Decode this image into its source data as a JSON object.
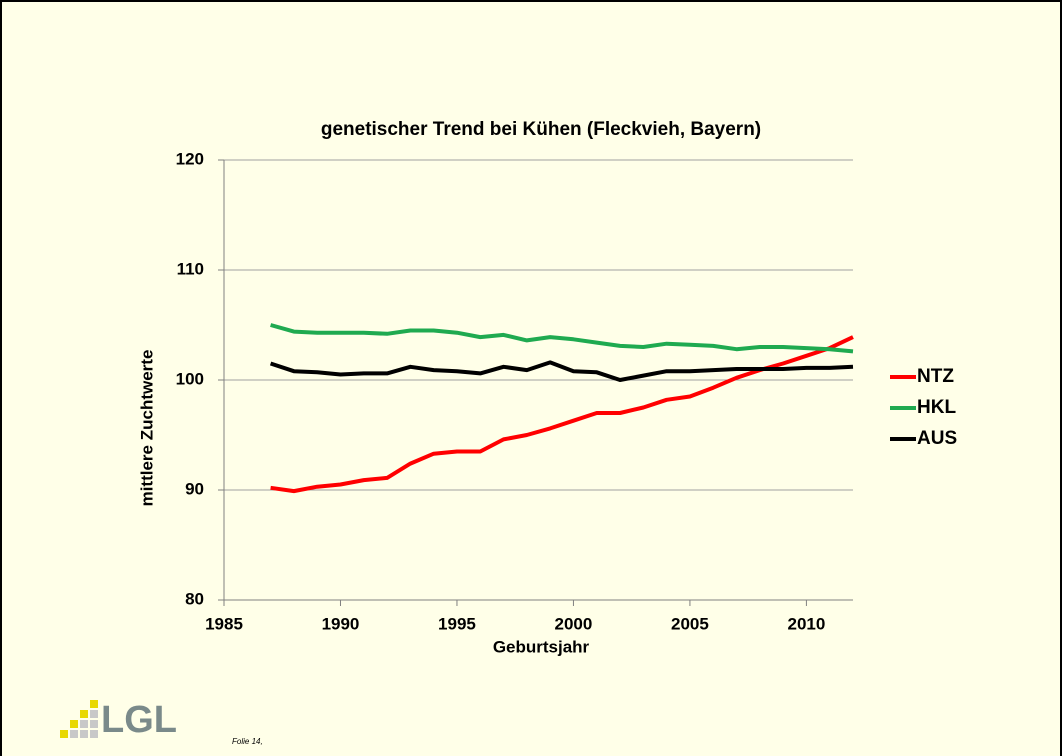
{
  "chart_data": {
    "type": "line",
    "title": "genetischer Trend bei Kühen (Fleckvieh, Bayern)",
    "x_label": "Geburtsjahr",
    "y_label": "mittlere Zuchtwerte",
    "x": [
      1987,
      1988,
      1989,
      1990,
      1991,
      1992,
      1993,
      1994,
      1995,
      1996,
      1997,
      1998,
      1999,
      2000,
      2001,
      2002,
      2003,
      2004,
      2005,
      2006,
      2007,
      2008,
      2009,
      2010,
      2011,
      2012
    ],
    "series": [
      {
        "name": "NTZ",
        "color": "#ff0000",
        "values": [
          90.2,
          89.9,
          90.3,
          90.5,
          90.9,
          91.1,
          92.4,
          93.3,
          93.5,
          93.5,
          94.6,
          95.0,
          95.6,
          96.3,
          97.0,
          97.0,
          97.5,
          98.2,
          98.5,
          99.3,
          100.2,
          100.9,
          101.5,
          102.2,
          102.9,
          103.9
        ]
      },
      {
        "name": "HKL",
        "color": "#1faa50",
        "values": [
          105.0,
          104.4,
          104.3,
          104.3,
          104.3,
          104.2,
          104.5,
          104.5,
          104.3,
          103.9,
          104.1,
          103.6,
          103.9,
          103.7,
          103.4,
          103.1,
          103.0,
          103.3,
          103.2,
          103.1,
          102.8,
          103.0,
          103.0,
          102.9,
          102.8,
          102.6
        ]
      },
      {
        "name": "AUS",
        "color": "#000000",
        "values": [
          101.5,
          100.8,
          100.7,
          100.5,
          100.6,
          100.6,
          101.2,
          100.9,
          100.8,
          100.6,
          101.2,
          100.9,
          101.6,
          100.8,
          100.7,
          100.0,
          100.4,
          100.8,
          100.8,
          100.9,
          101.0,
          101.0,
          101.0,
          101.1,
          101.1,
          101.2
        ]
      }
    ],
    "xlim": [
      1985,
      2012
    ],
    "xticks": [
      1985,
      1990,
      1995,
      2000,
      2005,
      2010
    ],
    "ylim": [
      80,
      120
    ],
    "yticks": [
      80,
      90,
      100,
      110,
      120
    ],
    "grid": true,
    "legend": "right"
  },
  "footer": {
    "logo": "LGL",
    "slide": "Folie 14,"
  }
}
